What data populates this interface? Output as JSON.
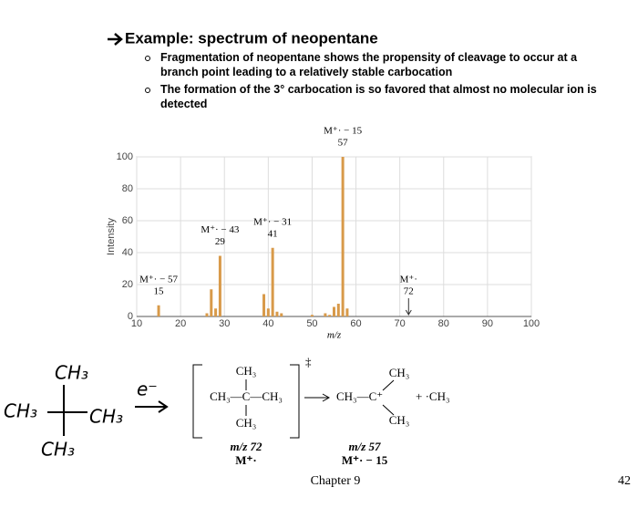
{
  "slide": {
    "heading": "Example: spectrum of neopentane",
    "bullets": [
      "Fragmentation of neopentane shows the propensity of cleavage to occur at a branch point leading to a relatively stable carbocation",
      "The formation of the 3° carbocation is so favored that almost no molecular ion is detected"
    ],
    "footer": "Chapter 9",
    "page": "42"
  },
  "chart_data": {
    "type": "bar",
    "xlabel": "m/z",
    "ylabel": "Intensity",
    "x": [
      15,
      26,
      27,
      28,
      29,
      39,
      40,
      41,
      42,
      43,
      50,
      53,
      54,
      55,
      56,
      57,
      58
    ],
    "values": [
      7,
      2,
      17,
      5,
      38,
      14,
      5,
      43,
      3,
      2,
      1,
      2,
      1,
      6,
      8,
      100,
      5
    ],
    "color": "#d89a4a",
    "xlim": [
      10,
      100
    ],
    "ylim": [
      0,
      100
    ],
    "xticks": [
      10,
      20,
      30,
      40,
      50,
      60,
      70,
      80,
      90,
      100
    ],
    "yticks": [
      0,
      20,
      40,
      60,
      80,
      100
    ],
    "grid": true,
    "annotations": [
      {
        "text": "M⁺· − 57",
        "x": 15
      },
      {
        "text": "M⁺· − 43",
        "x": 29
      },
      {
        "text": "M⁺· − 31",
        "x": 41
      },
      {
        "text": "M⁺· − 15",
        "x": 57
      },
      {
        "text": "M⁺·",
        "x": 72
      }
    ]
  },
  "reaction": {
    "left_top": "CH₃",
    "left_mid": "CH₃—C—CH₃",
    "left_bottom": "CH₃",
    "charge": "‡",
    "right_top": "CH₃",
    "right_mid": "CH₃—C⁺",
    "right_bottom": "CH₃",
    "radical": "+ ·CH₃",
    "left_mz": "m/z 72",
    "left_ion": "M⁺·",
    "right_mz": "m/z 57",
    "right_ion": "M⁺· − 15"
  },
  "handwriting": {
    "top": "CH₃",
    "left": "CH₃",
    "right": "CH₃",
    "bottom": "CH₃",
    "electron": "e⁻"
  }
}
